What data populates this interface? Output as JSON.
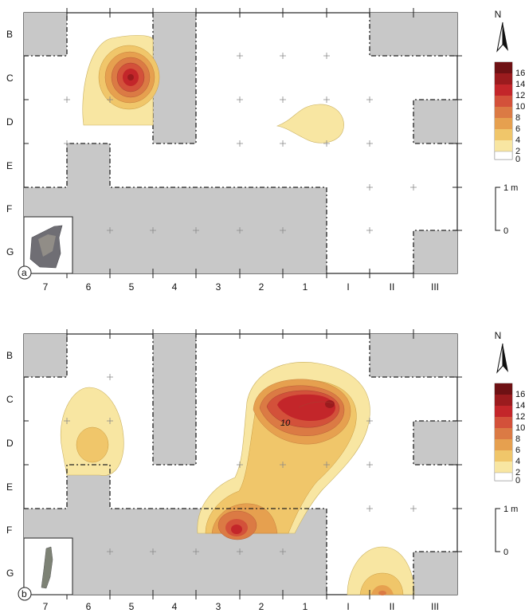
{
  "rows": [
    "B",
    "C",
    "D",
    "E",
    "F",
    "G"
  ],
  "columns": [
    "7",
    "6",
    "5",
    "4",
    "3",
    "2",
    "1",
    "I",
    "II",
    "III"
  ],
  "north_label": "N",
  "scale_label_top": "1 m",
  "scale_label_bottom": "0",
  "legend_values": [
    "16",
    "14",
    "12",
    "10",
    "8",
    "6",
    "4",
    "2",
    "0"
  ],
  "legend_colors": [
    "#6e1114",
    "#9b1b1e",
    "#c3262a",
    "#d3513a",
    "#db7a44",
    "#e6a04f",
    "#f0c66a",
    "#f8e6a2",
    "#ffffff"
  ],
  "panels": [
    {
      "badge": "a",
      "contour_labels": []
    },
    {
      "badge": "b",
      "contour_labels": [
        "10"
      ]
    }
  ]
}
